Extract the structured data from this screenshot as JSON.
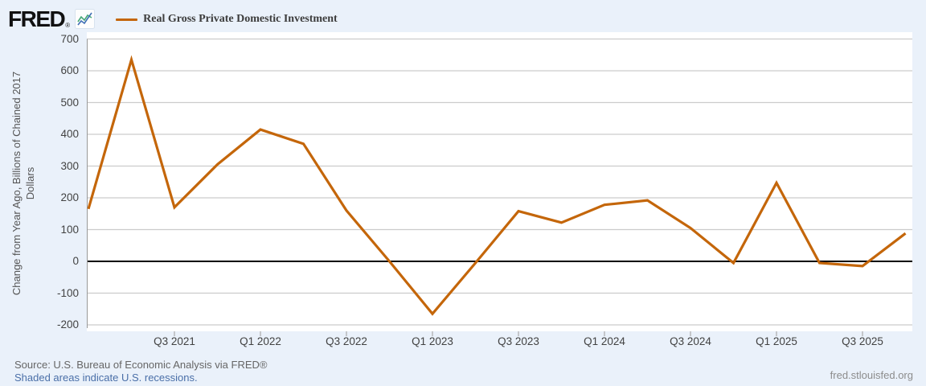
{
  "header": {
    "logo_text": "FRED",
    "registered_mark": "®",
    "legend_label": "Real Gross Private Domestic Investment"
  },
  "colors": {
    "series_orange": "#c4660a",
    "page_background": "#eaf1fa",
    "plot_background": "#ffffff",
    "gridline": "#cccccc",
    "zero_line": "#000000",
    "axis_line": "#999999",
    "tick_mark": "#b0b0b0",
    "link_blue": "#4a6fa8",
    "logo_sparkline_blue": "#3f6fb5",
    "logo_sparkline_teal": "#46a878"
  },
  "y_axis": {
    "title_line1": "Change from Year Ago, Billions of Chained 2017",
    "title_line2": "Dollars",
    "ticks": [
      700,
      600,
      500,
      400,
      300,
      200,
      100,
      0,
      -100,
      -200
    ]
  },
  "x_axis": {
    "tick_indices": [
      2,
      4,
      6,
      8,
      10,
      12,
      14,
      16,
      18
    ],
    "tick_labels": [
      "Q3 2021",
      "Q1 2022",
      "Q3 2022",
      "Q1 2023",
      "Q3 2023",
      "Q1 2024",
      "Q3 2024",
      "Q1 2025",
      "Q3 2025"
    ]
  },
  "chart_data": {
    "type": "line",
    "title": "Real Gross Private Domestic Investment",
    "xlabel": "",
    "ylabel": "Change from Year Ago, Billions of Chained 2017 Dollars",
    "x": [
      "Q1 2021",
      "Q2 2021",
      "Q3 2021",
      "Q4 2021",
      "Q1 2022",
      "Q2 2022",
      "Q3 2022",
      "Q4 2022",
      "Q1 2023",
      "Q2 2023",
      "Q3 2023",
      "Q4 2023",
      "Q1 2024",
      "Q2 2024",
      "Q3 2024",
      "Q4 2024",
      "Q1 2025",
      "Q2 2025",
      "Q3 2025",
      "Q4 2025"
    ],
    "values": [
      165,
      635,
      170,
      305,
      415,
      370,
      160,
      0,
      -165,
      -5,
      158,
      122,
      178,
      192,
      105,
      -5,
      247,
      -5,
      -15,
      88
    ],
    "ylim": [
      -200,
      700
    ],
    "grid": true,
    "zero_line": true,
    "legend_position": "top",
    "series_color": "#c4660a"
  },
  "footer": {
    "source": "Source: U.S. Bureau of Economic Analysis via FRED®",
    "recessions_note": "Shaded areas indicate U.S. recessions.",
    "site": "fred.stlouisfed.org"
  }
}
